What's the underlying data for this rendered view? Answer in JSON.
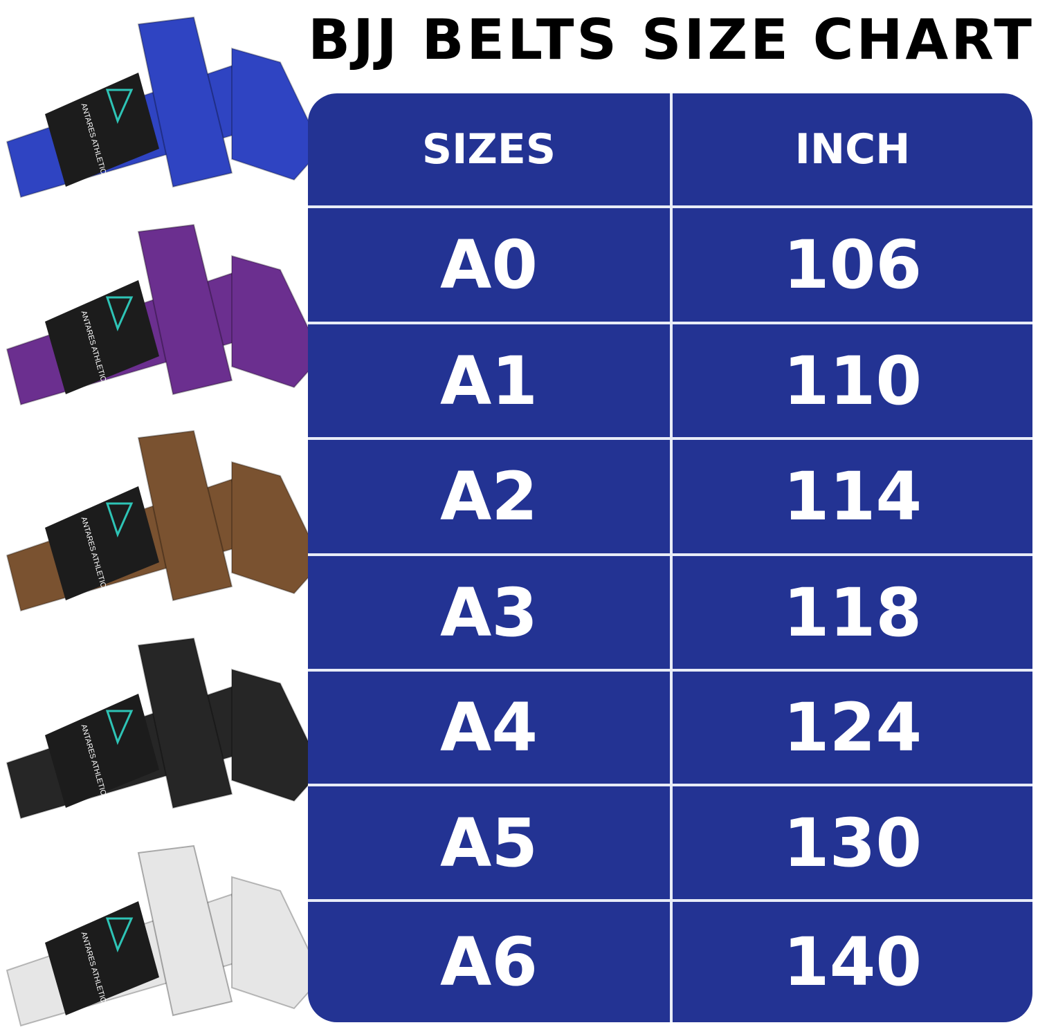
{
  "title": "BJJ BELTS SIZE CHART",
  "brand_logo_text": "ANTARES ATHLETICS",
  "belt_colors": [
    "#2f44c2",
    "#6b2f8f",
    "#7a5230",
    "#262626",
    "#e6e6e6"
  ],
  "table": {
    "headers": [
      "SIZES",
      "INCH"
    ],
    "rows": [
      {
        "size": "A0",
        "inch": "106"
      },
      {
        "size": "A1",
        "inch": "110"
      },
      {
        "size": "A2",
        "inch": "114"
      },
      {
        "size": "A3",
        "inch": "118"
      },
      {
        "size": "A4",
        "inch": "124"
      },
      {
        "size": "A5",
        "inch": "130"
      },
      {
        "size": "A6",
        "inch": "140"
      }
    ],
    "background_color": "#233393"
  }
}
